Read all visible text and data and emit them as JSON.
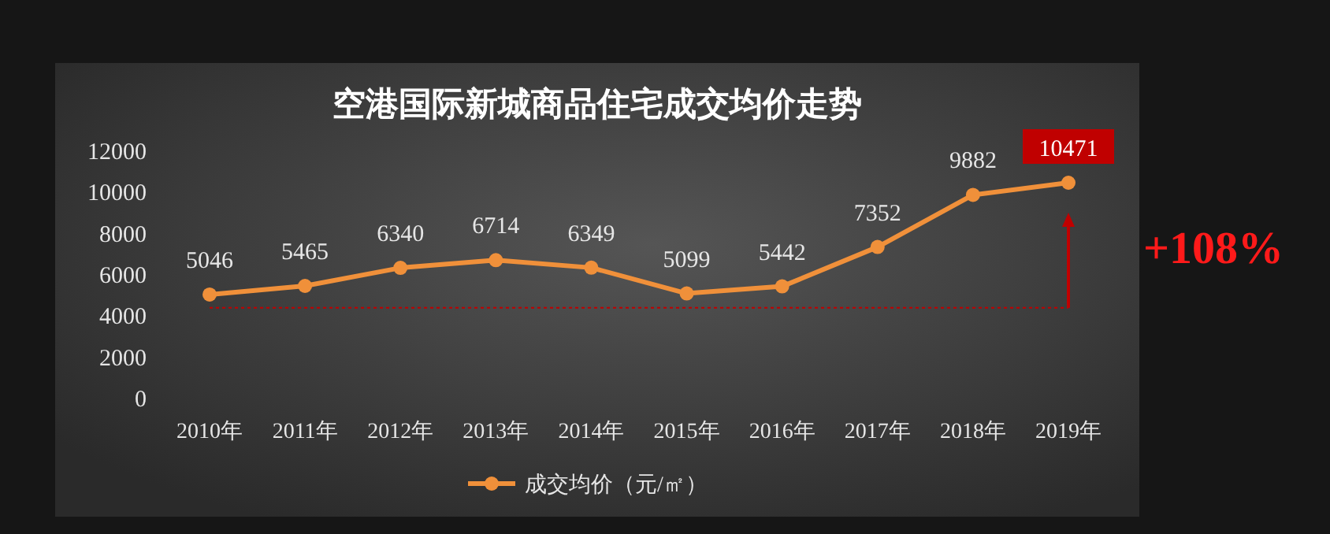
{
  "chart_data": {
    "type": "line",
    "title": "空港国际新城商品住宅成交均价走势",
    "categories": [
      "2010年",
      "2011年",
      "2012年",
      "2013年",
      "2014年",
      "2015年",
      "2016年",
      "2017年",
      "2018年",
      "2019年"
    ],
    "series": [
      {
        "name": "成交均价（元/㎡）",
        "color": "#f0903a",
        "values": [
          5046,
          5465,
          6340,
          6714,
          6349,
          5099,
          5442,
          7352,
          9882,
          10471
        ]
      }
    ],
    "ylim": [
      0,
      12000
    ],
    "yticks": [
      0,
      2000,
      4000,
      6000,
      8000,
      10000,
      12000
    ],
    "grid": false,
    "legend": "bottom",
    "marker": "circle",
    "line_style": "solid",
    "data_labels": true,
    "ref_lines": [
      {
        "axis": "y",
        "value": 4400,
        "color": "#c00000",
        "line_style": "dotted"
      }
    ],
    "annotations": [
      "+108%"
    ]
  }
}
